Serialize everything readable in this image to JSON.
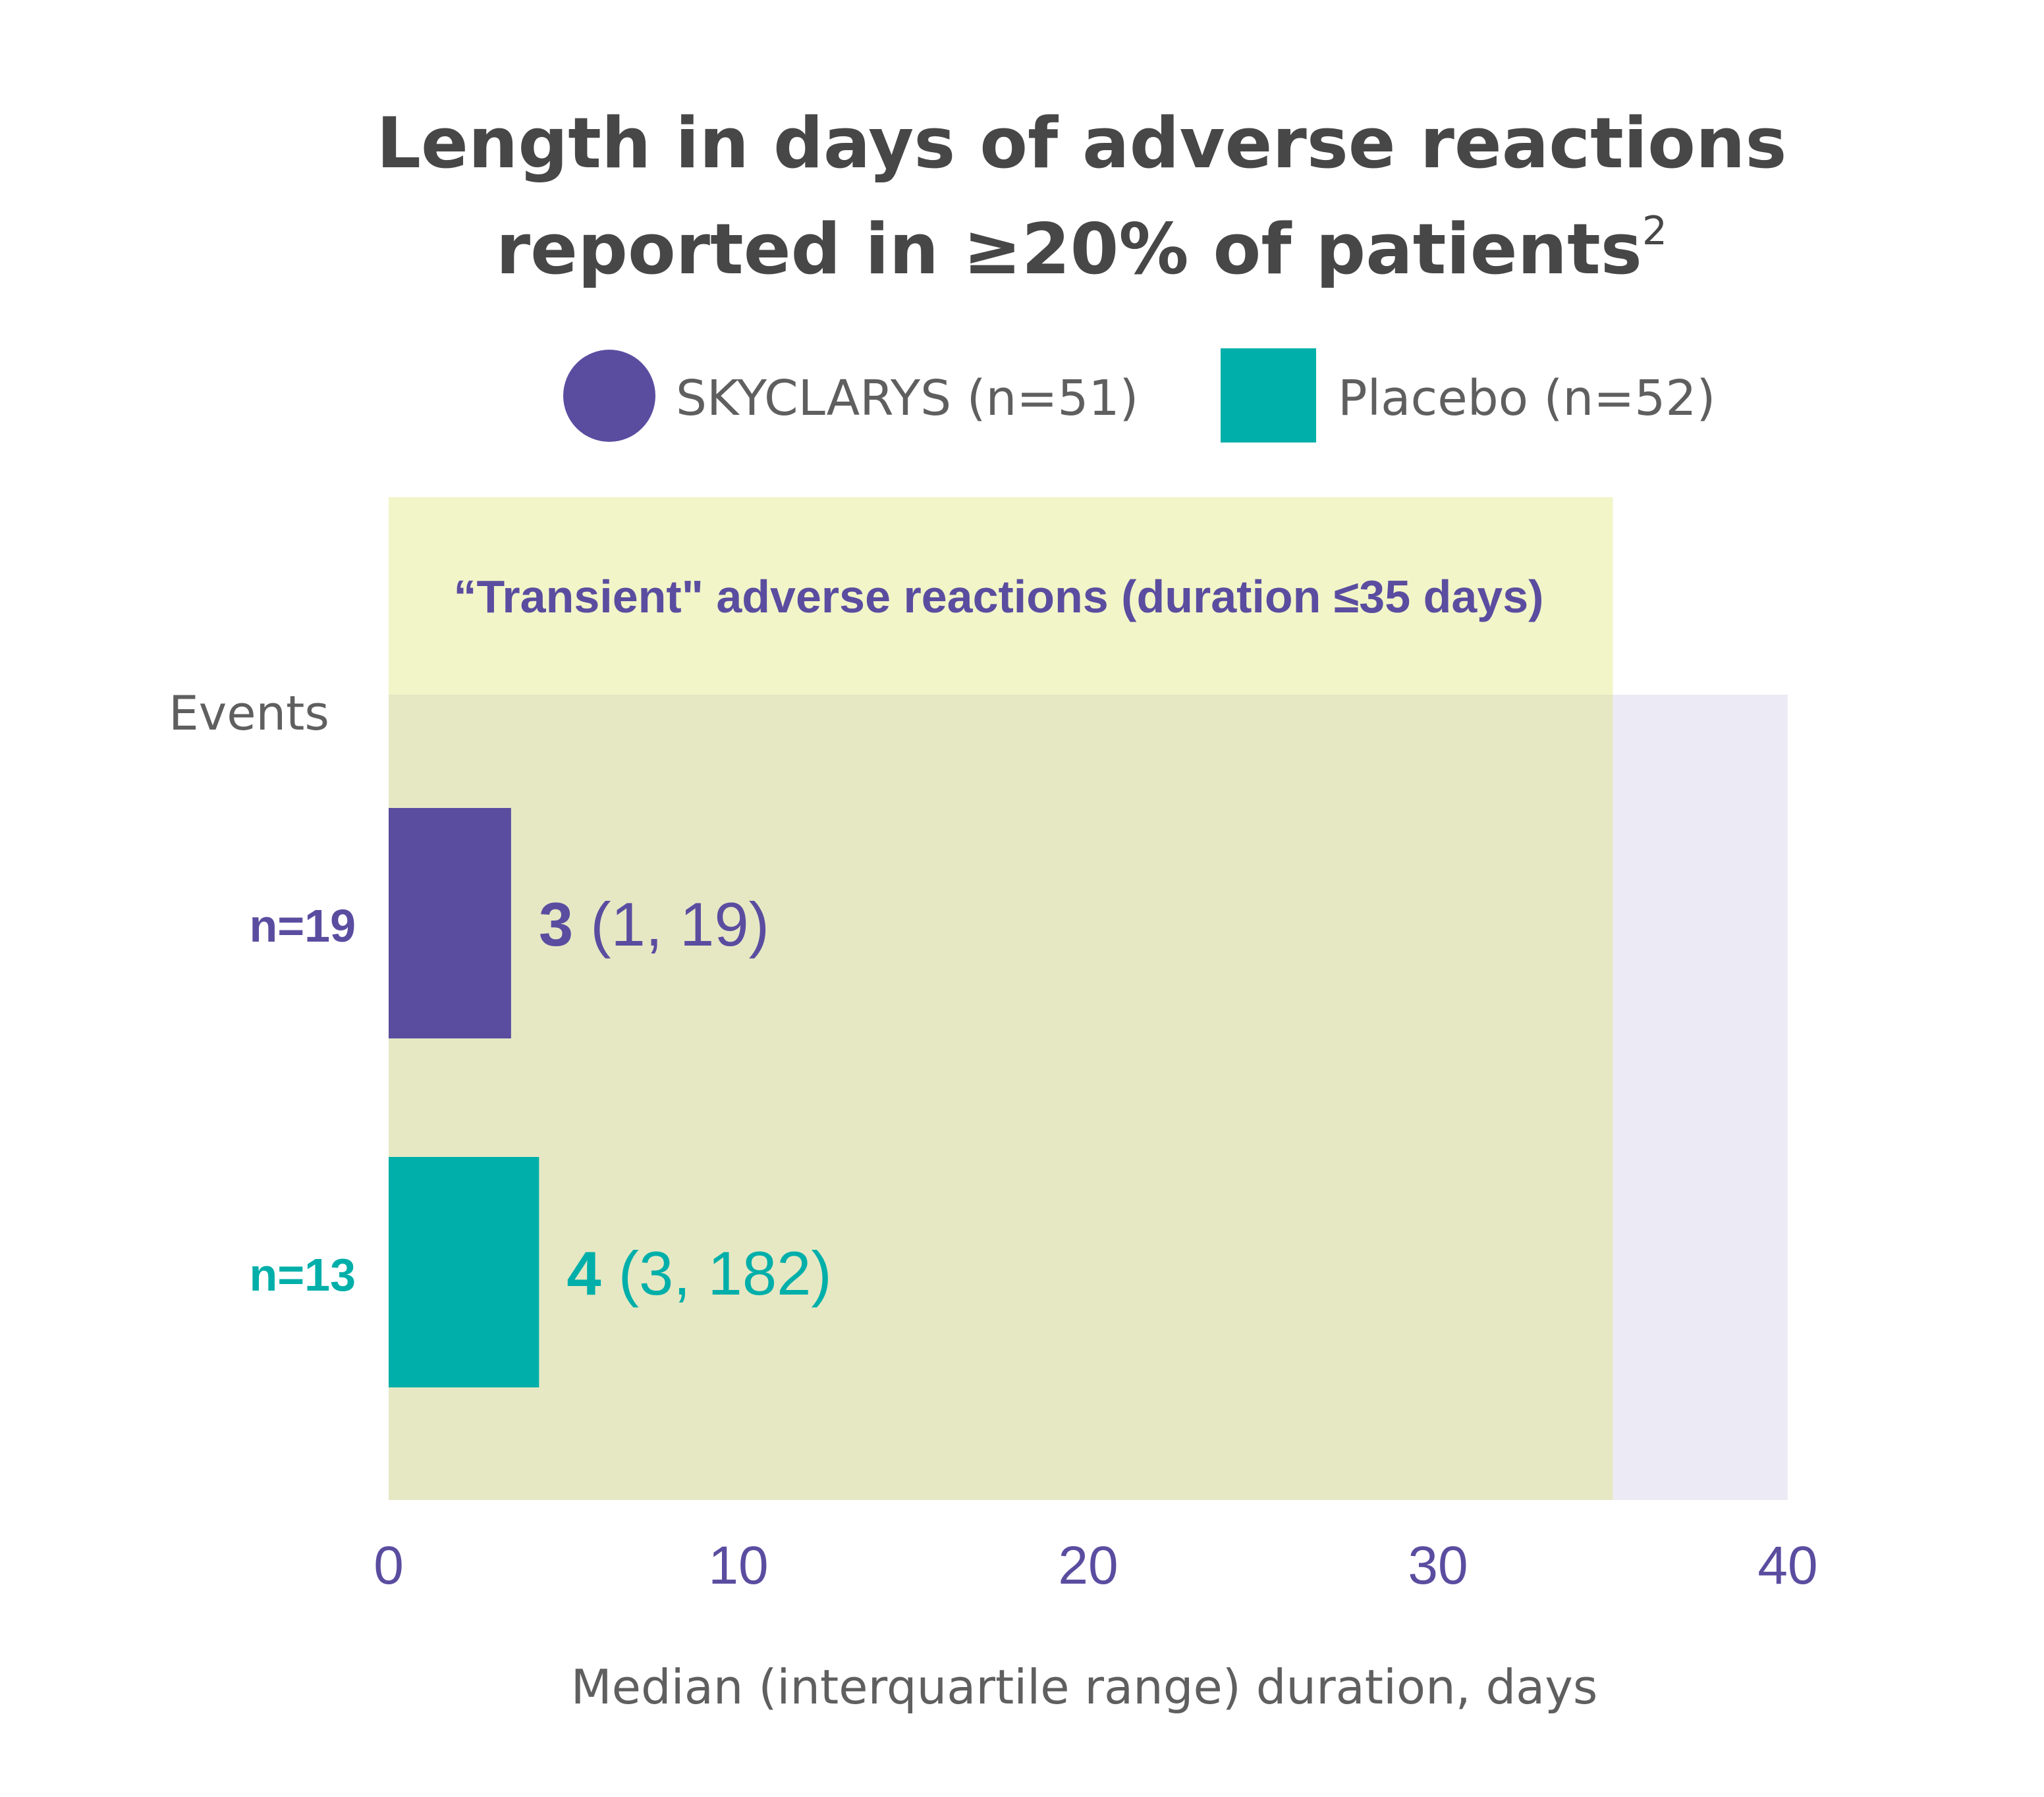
{
  "chart_data": {
    "type": "bar",
    "orientation": "horizontal",
    "title_line1": "Length in days of adverse reactions",
    "title_line2": "reported in ≥20% of patients",
    "title_superscript": "2",
    "legend": [
      {
        "label": "SKYCLARYS (n=51)",
        "marker": "circle",
        "color": "#5a4da0"
      },
      {
        "label": "Placebo (n=52)",
        "marker": "square",
        "color": "#00afa9"
      }
    ],
    "annotation_region": {
      "label": "“Transient\" adverse reactions (duration ≤35 days)",
      "x_end": 35,
      "color": "#f2f5c8"
    },
    "y_header": "Events",
    "series": [
      {
        "name": "SKYCLARYS (n=51)",
        "events_label": "n=19",
        "median": 3.5,
        "median_label": "3",
        "iqr_label": "(1, 19)",
        "color": "#5a4da0"
      },
      {
        "name": "Placebo (n=52)",
        "events_label": "n=13",
        "median": 4.3,
        "median_label": "4",
        "iqr_label": "(3, 182)",
        "color": "#00afa9"
      }
    ],
    "xlabel": "Median (interquartile range) duration, days",
    "xlim": [
      0,
      40
    ],
    "x_ticks": [
      "0",
      "10",
      "20",
      "30",
      "40"
    ],
    "plot_background": "#ecebf5",
    "overlap_color": "#e6e8c4",
    "tick_color": "#5a4da0",
    "grid": false
  }
}
